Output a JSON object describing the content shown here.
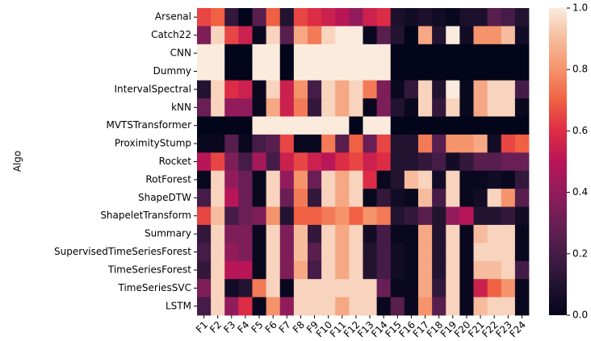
{
  "chart_data": {
    "type": "heatmap",
    "ylabel": "Algo",
    "rows": [
      "Arsenal",
      "Catch22",
      "CNN",
      "Dummy",
      "IntervalSpectral",
      "kNN",
      "MVTSTransformer",
      "ProximityStump",
      "Rocket",
      "RotForest",
      "ShapeDTW",
      "ShapeletTransform",
      "Summary",
      "SupervisedTimeSeriesForest",
      "TimeSeriesForest",
      "TimeSeriesSVC",
      "LSTM"
    ],
    "columns": [
      "F1",
      "F2",
      "F3",
      "F4",
      "F5",
      "F6",
      "F7",
      "F8",
      "F9",
      "F10",
      "F11",
      "F12",
      "F13",
      "F14",
      "F15",
      "F16",
      "F17",
      "F18",
      "F19",
      "F20",
      "F21",
      "F22",
      "F23",
      "F24"
    ],
    "values": [
      [
        0.65,
        0.7,
        0.15,
        0.0,
        0.25,
        0.7,
        0.1,
        0.65,
        0.6,
        0.55,
        0.5,
        0.4,
        0.55,
        0.6,
        0.08,
        0.05,
        0.08,
        0.05,
        0.02,
        0.08,
        0.08,
        0.25,
        0.2,
        0.1
      ],
      [
        0.35,
        0.95,
        0.65,
        0.55,
        0.02,
        0.95,
        0.25,
        0.85,
        0.75,
        0.95,
        1.0,
        1.0,
        0.02,
        0.25,
        0.1,
        0.0,
        0.85,
        0.1,
        1.0,
        0.05,
        0.8,
        0.8,
        0.9,
        0.05
      ],
      [
        1,
        1,
        0,
        0,
        1,
        1,
        0,
        1,
        1,
        1,
        1,
        1,
        1,
        1,
        0,
        0,
        0,
        0,
        0,
        0,
        0,
        0,
        0,
        0
      ],
      [
        1,
        1,
        0,
        0,
        1,
        1,
        0,
        1,
        1,
        1,
        1,
        1,
        1,
        1,
        0,
        0,
        0,
        0,
        0,
        0,
        0,
        0,
        0,
        0
      ],
      [
        0.1,
        0.95,
        0.6,
        0.55,
        0.02,
        0.95,
        0.55,
        0.8,
        0.2,
        0.95,
        0.85,
        0.95,
        0.75,
        0.35,
        0.02,
        0.15,
        0.95,
        0.1,
        1.0,
        0.02,
        0.85,
        0.95,
        0.95,
        0.2
      ],
      [
        0.3,
        0.95,
        0.4,
        0.4,
        0.02,
        0.85,
        0.55,
        0.75,
        0.15,
        0.95,
        0.85,
        0.95,
        0.02,
        0.35,
        0.1,
        0.02,
        0.95,
        0.15,
        0.95,
        0.02,
        0.85,
        0.95,
        0.95,
        0.02
      ],
      [
        0,
        0,
        0,
        0,
        1,
        1,
        1,
        1,
        1,
        1,
        1,
        0,
        1,
        1,
        0,
        0,
        0,
        0,
        0,
        0,
        0,
        0,
        0,
        0
      ],
      [
        0.02,
        0.02,
        0.25,
        0.02,
        0.2,
        0.25,
        0.65,
        0.02,
        0.02,
        0.75,
        0.25,
        0.7,
        0.3,
        0.65,
        0.1,
        0.1,
        0.75,
        0.25,
        0.8,
        0.8,
        0.85,
        0.05,
        0.65,
        0.7
      ],
      [
        0.5,
        0.65,
        0.35,
        0.2,
        0.45,
        0.2,
        0.55,
        0.65,
        0.55,
        0.5,
        0.6,
        0.65,
        0.55,
        0.6,
        0.1,
        0.1,
        0.15,
        0.2,
        0.05,
        0.15,
        0.25,
        0.25,
        0.3,
        0.3
      ],
      [
        0.02,
        0.95,
        0.4,
        0.3,
        0.02,
        0.95,
        0.4,
        0.8,
        0.3,
        0.95,
        0.85,
        0.95,
        0.6,
        0.02,
        0.1,
        0.9,
        0.95,
        0.05,
        0.95,
        0.02,
        0.02,
        0.05,
        0.02,
        0.15
      ],
      [
        0.2,
        0.95,
        0.5,
        0.3,
        0.02,
        0.95,
        0.3,
        0.75,
        0.15,
        0.95,
        0.85,
        0.95,
        0.02,
        0.15,
        0.05,
        0.02,
        0.9,
        0.2,
        0.95,
        0.02,
        0.05,
        0.95,
        0.8,
        0.25
      ],
      [
        0.65,
        0.9,
        0.2,
        0.3,
        0.35,
        0.8,
        0.1,
        0.7,
        0.7,
        0.75,
        0.8,
        0.7,
        0.8,
        0.75,
        0.1,
        0.15,
        0.25,
        0.1,
        0.4,
        0.5,
        0.1,
        0.1,
        0.15,
        0.05
      ],
      [
        0.15,
        0.95,
        0.35,
        0.35,
        0.02,
        0.95,
        0.35,
        0.9,
        0.15,
        0.95,
        0.85,
        0.95,
        0.05,
        0.2,
        0.02,
        0.02,
        0.85,
        0.1,
        0.95,
        0.02,
        0.9,
        0.95,
        0.95,
        0.02
      ],
      [
        0.2,
        0.95,
        0.4,
        0.35,
        0.02,
        0.95,
        0.35,
        0.9,
        0.25,
        0.95,
        0.85,
        0.95,
        0.1,
        0.2,
        0.05,
        0.02,
        0.85,
        0.1,
        0.95,
        0.02,
        0.95,
        0.95,
        0.95,
        0.02
      ],
      [
        0.15,
        0.95,
        0.5,
        0.5,
        0.02,
        0.95,
        0.35,
        0.85,
        0.2,
        0.95,
        0.85,
        0.95,
        0.1,
        0.2,
        0.05,
        0.02,
        0.85,
        0.1,
        0.95,
        0.02,
        0.9,
        0.9,
        0.95,
        0.2
      ],
      [
        0.35,
        0.95,
        0.05,
        0.1,
        0.75,
        0.95,
        0.02,
        0.95,
        0.95,
        0.95,
        0.95,
        0.95,
        0.95,
        0.3,
        0.02,
        0.02,
        0.85,
        0.15,
        0.95,
        0.02,
        0.55,
        0.7,
        0.8,
        0.02
      ],
      [
        0.2,
        0.95,
        0.4,
        0.6,
        0.02,
        0.8,
        0.4,
        0.95,
        0.95,
        0.95,
        0.85,
        0.95,
        0.95,
        0.02,
        0.25,
        0.02,
        0.8,
        0.25,
        0.95,
        0.02,
        0.9,
        0.95,
        0.95,
        0.02
      ]
    ],
    "clim": [
      0,
      1
    ],
    "cticks": [
      {
        "value": 0,
        "label": "0.0"
      },
      0.2,
      0.4,
      0.6,
      0.8,
      {
        "value": 1,
        "label": "1.0"
      }
    ],
    "colorscale": [
      [
        0,
        "#03051a"
      ],
      [
        0.1,
        "#221331"
      ],
      [
        0.2,
        "#451c47"
      ],
      [
        0.3,
        "#691f55"
      ],
      [
        0.4,
        "#921c5b"
      ],
      [
        0.5,
        "#b91657"
      ],
      [
        0.6,
        "#dd2c45"
      ],
      [
        0.7,
        "#f06043"
      ],
      [
        0.8,
        "#f5936a"
      ],
      [
        0.9,
        "#f6bc9d"
      ],
      [
        1,
        "#faebdd"
      ]
    ]
  }
}
